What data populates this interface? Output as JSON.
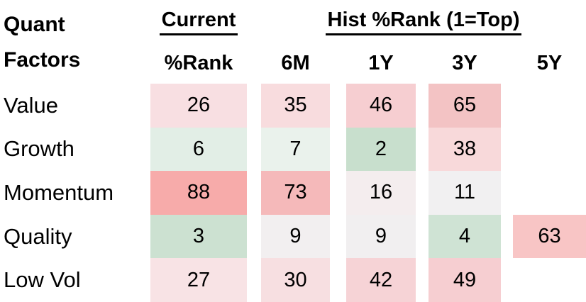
{
  "header": {
    "title_line1": "Quant",
    "title_line2": "Factors",
    "current_group": "Current",
    "hist_group": "Hist %Rank (1=Top)",
    "columns": [
      "%Rank",
      "6M",
      "1Y",
      "3Y",
      "5Y"
    ]
  },
  "table": {
    "rows": [
      {
        "label": "Value",
        "cells": [
          {
            "value": "26",
            "bg": "#f8dfe2"
          },
          {
            "value": "35",
            "bg": "#f8dcde"
          },
          {
            "value": "46",
            "bg": "#f6ced1"
          },
          {
            "value": "65",
            "bg": "#f3c3c4"
          },
          {
            "value": null,
            "bg": null
          }
        ]
      },
      {
        "label": "Growth",
        "cells": [
          {
            "value": "6",
            "bg": "#e2eee6"
          },
          {
            "value": "7",
            "bg": "#eaf2ec"
          },
          {
            "value": "2",
            "bg": "#c8dfcd"
          },
          {
            "value": "38",
            "bg": "#f8d9da"
          },
          {
            "value": null,
            "bg": null
          }
        ]
      },
      {
        "label": "Momentum",
        "cells": [
          {
            "value": "88",
            "bg": "#f7abaa"
          },
          {
            "value": "73",
            "bg": "#f5b9ba"
          },
          {
            "value": "16",
            "bg": "#f4edee"
          },
          {
            "value": "11",
            "bg": "#f1f0f1"
          },
          {
            "value": null,
            "bg": null
          }
        ]
      },
      {
        "label": "Quality",
        "cells": [
          {
            "value": "3",
            "bg": "#cce1d1"
          },
          {
            "value": "9",
            "bg": "#f2eff0"
          },
          {
            "value": "9",
            "bg": "#f1eff0"
          },
          {
            "value": "4",
            "bg": "#cfe3d4"
          },
          {
            "value": "63",
            "bg": "#f8c5c5"
          }
        ]
      },
      {
        "label": "Low Vol",
        "cells": [
          {
            "value": "27",
            "bg": "#f8e3e5"
          },
          {
            "value": "30",
            "bg": "#f7dfe1"
          },
          {
            "value": "42",
            "bg": "#f6d3d6"
          },
          {
            "value": "49",
            "bg": "#f6ced1"
          },
          {
            "value": null,
            "bg": null
          }
        ]
      }
    ]
  },
  "chart_data": {
    "type": "heatmap",
    "title": "Quant Factors",
    "column_group_labels": [
      "Current",
      "Hist %Rank (1=Top)"
    ],
    "columns": [
      "Current %Rank",
      "6M",
      "1Y",
      "3Y",
      "5Y"
    ],
    "rows": [
      "Value",
      "Growth",
      "Momentum",
      "Quality",
      "Low Vol"
    ],
    "values": [
      [
        26,
        35,
        46,
        65,
        null
      ],
      [
        6,
        7,
        2,
        38,
        null
      ],
      [
        88,
        73,
        16,
        11,
        null
      ],
      [
        3,
        9,
        9,
        4,
        63
      ],
      [
        27,
        30,
        42,
        49,
        null
      ]
    ],
    "scale_note": "1=Top; low ranks shaded green, mid near-white, high ranks shaded red",
    "colors": {
      "strong_green": "#c8dfcd",
      "neutral": "#f1f0f1",
      "strong_red": "#f7abaa"
    }
  }
}
